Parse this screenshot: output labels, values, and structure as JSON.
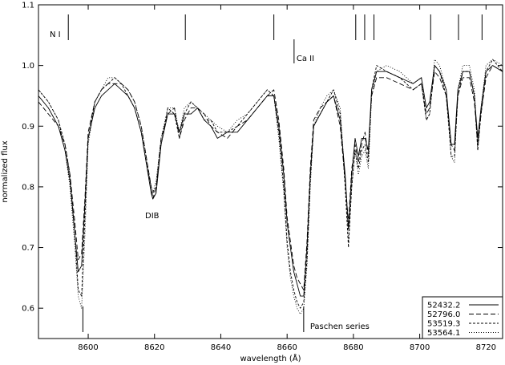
{
  "chart_data": {
    "type": "line",
    "xlabel": "wavelength (Å)",
    "ylabel": "normalized flux",
    "xlim": [
      8585,
      8725
    ],
    "ylim": [
      0.55,
      1.1
    ],
    "xticks": [
      8600,
      8620,
      8640,
      8660,
      8680,
      8700,
      8720
    ],
    "yticks": [
      0.6,
      0.7,
      0.8,
      0.9,
      1.0,
      1.1
    ],
    "grid": false,
    "legend_position": "bottom-right",
    "series": [
      {
        "name": "52432.2",
        "dash": "",
        "x": [
          8585,
          8588,
          8591,
          8593,
          8594.5,
          8596,
          8597,
          8598,
          8599,
          8600,
          8602,
          8604,
          8606,
          8608,
          8610,
          8612,
          8614,
          8616,
          8617.5,
          8619,
          8619.5,
          8620.5,
          8622,
          8624,
          8626,
          8627.5,
          8629,
          8631,
          8633,
          8635,
          8637,
          8639,
          8642,
          8645,
          8648,
          8651,
          8654,
          8656,
          8657.5,
          8659,
          8660,
          8661,
          8662,
          8663,
          8664,
          8665,
          8666,
          8667,
          8668,
          8670,
          8672,
          8674,
          8676,
          8677.5,
          8678.5,
          8679.5,
          8680.5,
          8681.5,
          8682.5,
          8683.5,
          8684.5,
          8685.5,
          8687,
          8690,
          8694,
          8698,
          8700.5,
          8702,
          8703,
          8704.5,
          8706,
          8708,
          8709.5,
          8710.5,
          8711.5,
          8713,
          8715,
          8716.5,
          8717.5,
          8718.5,
          8720,
          8722,
          8725
        ],
        "y": [
          0.95,
          0.93,
          0.9,
          0.86,
          0.81,
          0.72,
          0.66,
          0.67,
          0.77,
          0.88,
          0.93,
          0.95,
          0.96,
          0.97,
          0.96,
          0.95,
          0.93,
          0.89,
          0.84,
          0.79,
          0.78,
          0.79,
          0.87,
          0.92,
          0.92,
          0.89,
          0.92,
          0.92,
          0.93,
          0.91,
          0.9,
          0.88,
          0.89,
          0.89,
          0.91,
          0.93,
          0.95,
          0.95,
          0.9,
          0.82,
          0.74,
          0.7,
          0.66,
          0.64,
          0.62,
          0.62,
          0.7,
          0.82,
          0.9,
          0.92,
          0.94,
          0.95,
          0.91,
          0.82,
          0.73,
          0.82,
          0.88,
          0.85,
          0.88,
          0.88,
          0.86,
          0.96,
          0.99,
          0.99,
          0.98,
          0.97,
          0.98,
          0.93,
          0.94,
          1.0,
          0.99,
          0.96,
          0.87,
          0.87,
          0.96,
          0.99,
          0.99,
          0.95,
          0.88,
          0.93,
          0.99,
          1.0,
          0.99
        ]
      },
      {
        "name": "52796.0",
        "dash": "6,3",
        "x": [
          8585,
          8588,
          8591,
          8593,
          8594.5,
          8596,
          8597,
          8598,
          8599,
          8600,
          8602,
          8604,
          8606,
          8608,
          8610,
          8612,
          8614,
          8616,
          8617.5,
          8619,
          8619.5,
          8620.5,
          8622,
          8624,
          8626,
          8627.5,
          8629,
          8631,
          8633,
          8635,
          8637,
          8639,
          8642,
          8645,
          8648,
          8651,
          8654,
          8656,
          8657.5,
          8659,
          8660,
          8661,
          8662,
          8663,
          8664,
          8665,
          8666,
          8667,
          8668,
          8670,
          8672,
          8674,
          8676,
          8677.5,
          8678.5,
          8679.5,
          8680.5,
          8681.5,
          8682.5,
          8683.5,
          8684.5,
          8685.5,
          8687,
          8690,
          8694,
          8698,
          8700.5,
          8702,
          8703,
          8704.5,
          8706,
          8708,
          8709.5,
          8710.5,
          8711.5,
          8713,
          8715,
          8716.5,
          8717.5,
          8718.5,
          8720,
          8722,
          8725
        ],
        "y": [
          0.94,
          0.92,
          0.9,
          0.87,
          0.82,
          0.74,
          0.68,
          0.69,
          0.78,
          0.89,
          0.94,
          0.96,
          0.97,
          0.97,
          0.97,
          0.96,
          0.94,
          0.9,
          0.85,
          0.8,
          0.78,
          0.8,
          0.88,
          0.92,
          0.93,
          0.88,
          0.91,
          0.93,
          0.93,
          0.92,
          0.9,
          0.89,
          0.88,
          0.9,
          0.91,
          0.93,
          0.95,
          0.96,
          0.91,
          0.83,
          0.75,
          0.71,
          0.67,
          0.65,
          0.64,
          0.63,
          0.71,
          0.83,
          0.91,
          0.93,
          0.94,
          0.95,
          0.9,
          0.81,
          0.74,
          0.83,
          0.87,
          0.84,
          0.87,
          0.89,
          0.85,
          0.95,
          0.98,
          0.98,
          0.97,
          0.96,
          0.97,
          0.92,
          0.93,
          0.99,
          0.98,
          0.95,
          0.87,
          0.86,
          0.95,
          0.98,
          0.98,
          0.94,
          0.87,
          0.92,
          0.98,
          1.0,
          0.99
        ]
      },
      {
        "name": "53519.3",
        "dash": "3,2",
        "x": [
          8585,
          8588,
          8591,
          8593,
          8594.5,
          8596,
          8597,
          8598,
          8599,
          8600,
          8602,
          8604,
          8606,
          8608,
          8610,
          8612,
          8614,
          8616,
          8617.5,
          8619,
          8619.5,
          8620.5,
          8622,
          8624,
          8626,
          8627.5,
          8629,
          8631,
          8633,
          8635,
          8637,
          8639,
          8642,
          8645,
          8648,
          8651,
          8654,
          8656,
          8657.5,
          8659,
          8660,
          8661,
          8662,
          8663,
          8664,
          8665,
          8666,
          8667,
          8668,
          8670,
          8672,
          8674,
          8676,
          8677.5,
          8678.5,
          8679.5,
          8680.5,
          8681.5,
          8682.5,
          8683.5,
          8684.5,
          8685.5,
          8687,
          8690,
          8694,
          8698,
          8700.5,
          8702,
          8703,
          8704.5,
          8706,
          8708,
          8709.5,
          8710.5,
          8711.5,
          8713,
          8715,
          8716.5,
          8717.5,
          8718.5,
          8720,
          8722,
          8725
        ],
        "y": [
          0.96,
          0.94,
          0.91,
          0.87,
          0.82,
          0.72,
          0.63,
          0.62,
          0.75,
          0.88,
          0.94,
          0.96,
          0.97,
          0.98,
          0.97,
          0.95,
          0.93,
          0.89,
          0.84,
          0.8,
          0.79,
          0.8,
          0.87,
          0.93,
          0.92,
          0.88,
          0.92,
          0.94,
          0.93,
          0.91,
          0.91,
          0.89,
          0.89,
          0.9,
          0.92,
          0.94,
          0.96,
          0.95,
          0.89,
          0.8,
          0.71,
          0.66,
          0.63,
          0.61,
          0.6,
          0.61,
          0.68,
          0.81,
          0.9,
          0.92,
          0.94,
          0.96,
          0.92,
          0.8,
          0.7,
          0.8,
          0.86,
          0.83,
          0.86,
          0.87,
          0.84,
          0.96,
          1.0,
          0.99,
          0.98,
          0.96,
          0.97,
          0.91,
          0.92,
          1.0,
          0.99,
          0.95,
          0.85,
          0.85,
          0.95,
          0.99,
          0.99,
          0.95,
          0.86,
          0.92,
          0.99,
          1.01,
          0.99
        ]
      },
      {
        "name": "53564.1",
        "dash": "1,2",
        "x": [
          8585,
          8588,
          8591,
          8593,
          8594.5,
          8596,
          8597,
          8598,
          8599,
          8600,
          8602,
          8604,
          8606,
          8608,
          8610,
          8612,
          8614,
          8616,
          8617.5,
          8619,
          8619.5,
          8620.5,
          8622,
          8624,
          8626,
          8627.5,
          8629,
          8631,
          8633,
          8635,
          8637,
          8639,
          8642,
          8645,
          8648,
          8651,
          8654,
          8656,
          8657.5,
          8659,
          8660,
          8661,
          8662,
          8663,
          8664,
          8665,
          8666,
          8667,
          8668,
          8670,
          8672,
          8674,
          8676,
          8677.5,
          8678.5,
          8679.5,
          8680.5,
          8681.5,
          8682.5,
          8683.5,
          8684.5,
          8685.5,
          8687,
          8690,
          8694,
          8698,
          8700.5,
          8702,
          8703,
          8704.5,
          8706,
          8708,
          8709.5,
          8710.5,
          8711.5,
          8713,
          8715,
          8716.5,
          8717.5,
          8718.5,
          8720,
          8722,
          8725
        ],
        "y": [
          0.96,
          0.94,
          0.91,
          0.86,
          0.8,
          0.7,
          0.62,
          0.6,
          0.72,
          0.87,
          0.94,
          0.96,
          0.98,
          0.98,
          0.97,
          0.96,
          0.94,
          0.9,
          0.85,
          0.8,
          0.79,
          0.81,
          0.88,
          0.93,
          0.93,
          0.89,
          0.93,
          0.94,
          0.93,
          0.92,
          0.91,
          0.9,
          0.89,
          0.91,
          0.92,
          0.94,
          0.96,
          0.95,
          0.88,
          0.79,
          0.7,
          0.65,
          0.62,
          0.6,
          0.59,
          0.6,
          0.67,
          0.8,
          0.9,
          0.93,
          0.95,
          0.96,
          0.93,
          0.81,
          0.71,
          0.8,
          0.86,
          0.82,
          0.85,
          0.86,
          0.83,
          0.95,
          0.99,
          1.0,
          0.99,
          0.97,
          0.98,
          0.91,
          0.92,
          1.01,
          1.0,
          0.96,
          0.85,
          0.84,
          0.96,
          1.0,
          1.0,
          0.96,
          0.86,
          0.93,
          1.0,
          1.01,
          1.0
        ]
      }
    ],
    "markers": {
      "top": {
        "label": "N I",
        "x": [
          8594,
          8629.3,
          8656,
          8680.7,
          8683.4,
          8686.2,
          8703.3,
          8711.7,
          8718.8
        ]
      },
      "caii": {
        "label": "Ca II",
        "x": [
          8662.1
        ]
      },
      "paschen": {
        "label": "Paschen series",
        "x": [
          8598.4,
          8665
        ]
      }
    },
    "annotations": {
      "dib": "DIB"
    }
  }
}
